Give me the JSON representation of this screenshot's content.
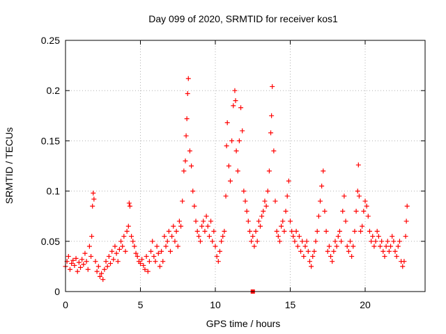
{
  "chart_data": {
    "type": "scatter",
    "title": "Day 099 of 2020, SRMTID for receiver kos1",
    "xlabel": "GPS time / hours",
    "ylabel": "SRMTID / TECUs",
    "xlim": [
      0,
      24
    ],
    "ylim": [
      0,
      0.25
    ],
    "x_ticks": [
      0,
      5,
      10,
      15,
      20
    ],
    "x_tick_labels": [
      "0",
      "5",
      "10",
      "15",
      "20"
    ],
    "y_ticks": [
      0,
      0.05,
      0.1,
      0.15,
      0.2,
      0.25
    ],
    "y_tick_labels": [
      "0",
      "0.05",
      "0.1",
      "0.15",
      "0.2",
      "0.25"
    ],
    "grid": true,
    "marker": "plus",
    "series": [
      {
        "name": "SRMTID",
        "color": "#ff0000",
        "points": [
          [
            0.0,
            0.025
          ],
          [
            0.1,
            0.03
          ],
          [
            0.2,
            0.035
          ],
          [
            0.3,
            0.022
          ],
          [
            0.4,
            0.028
          ],
          [
            0.5,
            0.031
          ],
          [
            0.6,
            0.026
          ],
          [
            0.7,
            0.033
          ],
          [
            0.8,
            0.02
          ],
          [
            0.9,
            0.029
          ],
          [
            1.0,
            0.024
          ],
          [
            1.1,
            0.032
          ],
          [
            1.2,
            0.027
          ],
          [
            1.3,
            0.038
          ],
          [
            1.4,
            0.03
          ],
          [
            1.5,
            0.022
          ],
          [
            1.6,
            0.045
          ],
          [
            1.7,
            0.035
          ],
          [
            1.75,
            0.055
          ],
          [
            1.8,
            0.085
          ],
          [
            1.85,
            0.098
          ],
          [
            1.9,
            0.092
          ],
          [
            2.0,
            0.03
          ],
          [
            2.1,
            0.02
          ],
          [
            2.2,
            0.025
          ],
          [
            2.3,
            0.015
          ],
          [
            2.4,
            0.018
          ],
          [
            2.5,
            0.012
          ],
          [
            2.6,
            0.022
          ],
          [
            2.7,
            0.03
          ],
          [
            2.8,
            0.025
          ],
          [
            2.9,
            0.035
          ],
          [
            3.0,
            0.028
          ],
          [
            3.1,
            0.04
          ],
          [
            3.2,
            0.032
          ],
          [
            3.3,
            0.045
          ],
          [
            3.4,
            0.038
          ],
          [
            3.5,
            0.03
          ],
          [
            3.6,
            0.042
          ],
          [
            3.7,
            0.05
          ],
          [
            3.8,
            0.045
          ],
          [
            3.9,
            0.055
          ],
          [
            4.0,
            0.04
          ],
          [
            4.1,
            0.06
          ],
          [
            4.2,
            0.065
          ],
          [
            4.25,
            0.088
          ],
          [
            4.3,
            0.085
          ],
          [
            4.4,
            0.055
          ],
          [
            4.5,
            0.05
          ],
          [
            4.6,
            0.045
          ],
          [
            4.7,
            0.038
          ],
          [
            4.8,
            0.035
          ],
          [
            4.9,
            0.03
          ],
          [
            5.0,
            0.028
          ],
          [
            5.1,
            0.032
          ],
          [
            5.2,
            0.026
          ],
          [
            5.3,
            0.022
          ],
          [
            5.4,
            0.035
          ],
          [
            5.5,
            0.02
          ],
          [
            5.6,
            0.03
          ],
          [
            5.7,
            0.04
          ],
          [
            5.8,
            0.05
          ],
          [
            5.9,
            0.035
          ],
          [
            6.0,
            0.03
          ],
          [
            6.1,
            0.045
          ],
          [
            6.2,
            0.038
          ],
          [
            6.3,
            0.025
          ],
          [
            6.4,
            0.04
          ],
          [
            6.5,
            0.03
          ],
          [
            6.6,
            0.055
          ],
          [
            6.7,
            0.045
          ],
          [
            6.8,
            0.05
          ],
          [
            6.9,
            0.06
          ],
          [
            7.0,
            0.04
          ],
          [
            7.1,
            0.055
          ],
          [
            7.2,
            0.065
          ],
          [
            7.3,
            0.05
          ],
          [
            7.4,
            0.06
          ],
          [
            7.5,
            0.045
          ],
          [
            7.6,
            0.07
          ],
          [
            7.7,
            0.065
          ],
          [
            7.8,
            0.09
          ],
          [
            7.9,
            0.12
          ],
          [
            8.0,
            0.13
          ],
          [
            8.05,
            0.155
          ],
          [
            8.1,
            0.172
          ],
          [
            8.15,
            0.197
          ],
          [
            8.2,
            0.212
          ],
          [
            8.3,
            0.14
          ],
          [
            8.4,
            0.125
          ],
          [
            8.5,
            0.1
          ],
          [
            8.6,
            0.085
          ],
          [
            8.7,
            0.07
          ],
          [
            8.8,
            0.06
          ],
          [
            8.9,
            0.055
          ],
          [
            9.0,
            0.05
          ],
          [
            9.1,
            0.065
          ],
          [
            9.2,
            0.07
          ],
          [
            9.3,
            0.06
          ],
          [
            9.4,
            0.075
          ],
          [
            9.5,
            0.065
          ],
          [
            9.6,
            0.055
          ],
          [
            9.7,
            0.07
          ],
          [
            9.8,
            0.05
          ],
          [
            9.9,
            0.06
          ],
          [
            10.0,
            0.045
          ],
          [
            10.1,
            0.035
          ],
          [
            10.2,
            0.03
          ],
          [
            10.3,
            0.04
          ],
          [
            10.4,
            0.05
          ],
          [
            10.5,
            0.055
          ],
          [
            10.6,
            0.06
          ],
          [
            10.7,
            0.095
          ],
          [
            10.75,
            0.145
          ],
          [
            10.8,
            0.168
          ],
          [
            10.9,
            0.125
          ],
          [
            11.0,
            0.11
          ],
          [
            11.1,
            0.15
          ],
          [
            11.2,
            0.185
          ],
          [
            11.3,
            0.2
          ],
          [
            11.35,
            0.19
          ],
          [
            11.4,
            0.14
          ],
          [
            11.5,
            0.12
          ],
          [
            11.6,
            0.15
          ],
          [
            11.7,
            0.183
          ],
          [
            11.8,
            0.16
          ],
          [
            11.9,
            0.1
          ],
          [
            12.0,
            0.09
          ],
          [
            12.1,
            0.08
          ],
          [
            12.2,
            0.07
          ],
          [
            12.3,
            0.06
          ],
          [
            12.4,
            0.05
          ],
          [
            12.5,
            0.055
          ],
          [
            12.6,
            0.045
          ],
          [
            12.7,
            0.06
          ],
          [
            12.8,
            0.05
          ],
          [
            12.9,
            0.07
          ],
          [
            13.0,
            0.065
          ],
          [
            13.1,
            0.075
          ],
          [
            13.2,
            0.08
          ],
          [
            13.3,
            0.09
          ],
          [
            13.4,
            0.085
          ],
          [
            13.5,
            0.1
          ],
          [
            13.6,
            0.12
          ],
          [
            13.7,
            0.158
          ],
          [
            13.75,
            0.175
          ],
          [
            13.8,
            0.204
          ],
          [
            13.9,
            0.14
          ],
          [
            14.0,
            0.09
          ],
          [
            14.1,
            0.06
          ],
          [
            14.2,
            0.055
          ],
          [
            14.3,
            0.05
          ],
          [
            14.4,
            0.065
          ],
          [
            14.5,
            0.07
          ],
          [
            14.6,
            0.06
          ],
          [
            14.7,
            0.08
          ],
          [
            14.8,
            0.095
          ],
          [
            14.9,
            0.11
          ],
          [
            15.0,
            0.07
          ],
          [
            15.1,
            0.06
          ],
          [
            15.2,
            0.055
          ],
          [
            15.3,
            0.05
          ],
          [
            15.4,
            0.06
          ],
          [
            15.5,
            0.045
          ],
          [
            15.6,
            0.055
          ],
          [
            15.7,
            0.04
          ],
          [
            15.8,
            0.05
          ],
          [
            15.9,
            0.035
          ],
          [
            16.0,
            0.045
          ],
          [
            16.1,
            0.05
          ],
          [
            16.2,
            0.04
          ],
          [
            16.3,
            0.03
          ],
          [
            16.4,
            0.025
          ],
          [
            16.5,
            0.035
          ],
          [
            16.6,
            0.04
          ],
          [
            16.7,
            0.05
          ],
          [
            16.8,
            0.06
          ],
          [
            16.9,
            0.075
          ],
          [
            17.0,
            0.09
          ],
          [
            17.1,
            0.105
          ],
          [
            17.2,
            0.12
          ],
          [
            17.3,
            0.08
          ],
          [
            17.4,
            0.06
          ],
          [
            17.5,
            0.04
          ],
          [
            17.6,
            0.045
          ],
          [
            17.7,
            0.035
          ],
          [
            17.8,
            0.03
          ],
          [
            17.9,
            0.04
          ],
          [
            18.0,
            0.05
          ],
          [
            18.1,
            0.045
          ],
          [
            18.2,
            0.055
          ],
          [
            18.3,
            0.06
          ],
          [
            18.4,
            0.05
          ],
          [
            18.5,
            0.08
          ],
          [
            18.6,
            0.095
          ],
          [
            18.7,
            0.07
          ],
          [
            18.8,
            0.045
          ],
          [
            18.9,
            0.04
          ],
          [
            19.0,
            0.05
          ],
          [
            19.1,
            0.035
          ],
          [
            19.2,
            0.045
          ],
          [
            19.3,
            0.06
          ],
          [
            19.4,
            0.08
          ],
          [
            19.5,
            0.1
          ],
          [
            19.55,
            0.126
          ],
          [
            19.6,
            0.095
          ],
          [
            19.7,
            0.06
          ],
          [
            19.8,
            0.065
          ],
          [
            19.9,
            0.08
          ],
          [
            20.0,
            0.09
          ],
          [
            20.1,
            0.085
          ],
          [
            20.2,
            0.075
          ],
          [
            20.3,
            0.06
          ],
          [
            20.4,
            0.05
          ],
          [
            20.5,
            0.055
          ],
          [
            20.6,
            0.045
          ],
          [
            20.7,
            0.05
          ],
          [
            20.8,
            0.06
          ],
          [
            20.9,
            0.055
          ],
          [
            21.0,
            0.045
          ],
          [
            21.1,
            0.05
          ],
          [
            21.2,
            0.04
          ],
          [
            21.3,
            0.035
          ],
          [
            21.4,
            0.045
          ],
          [
            21.5,
            0.05
          ],
          [
            21.6,
            0.04
          ],
          [
            21.7,
            0.045
          ],
          [
            21.8,
            0.055
          ],
          [
            21.9,
            0.05
          ],
          [
            22.0,
            0.04
          ],
          [
            22.1,
            0.035
          ],
          [
            22.2,
            0.045
          ],
          [
            22.3,
            0.05
          ],
          [
            22.4,
            0.03
          ],
          [
            22.5,
            0.025
          ],
          [
            22.6,
            0.03
          ],
          [
            22.7,
            0.055
          ],
          [
            22.75,
            0.07
          ],
          [
            22.8,
            0.085
          ]
        ]
      }
    ],
    "outlier_marker": {
      "x": 12.5,
      "y": 0.0,
      "shape": "filled-square"
    }
  }
}
